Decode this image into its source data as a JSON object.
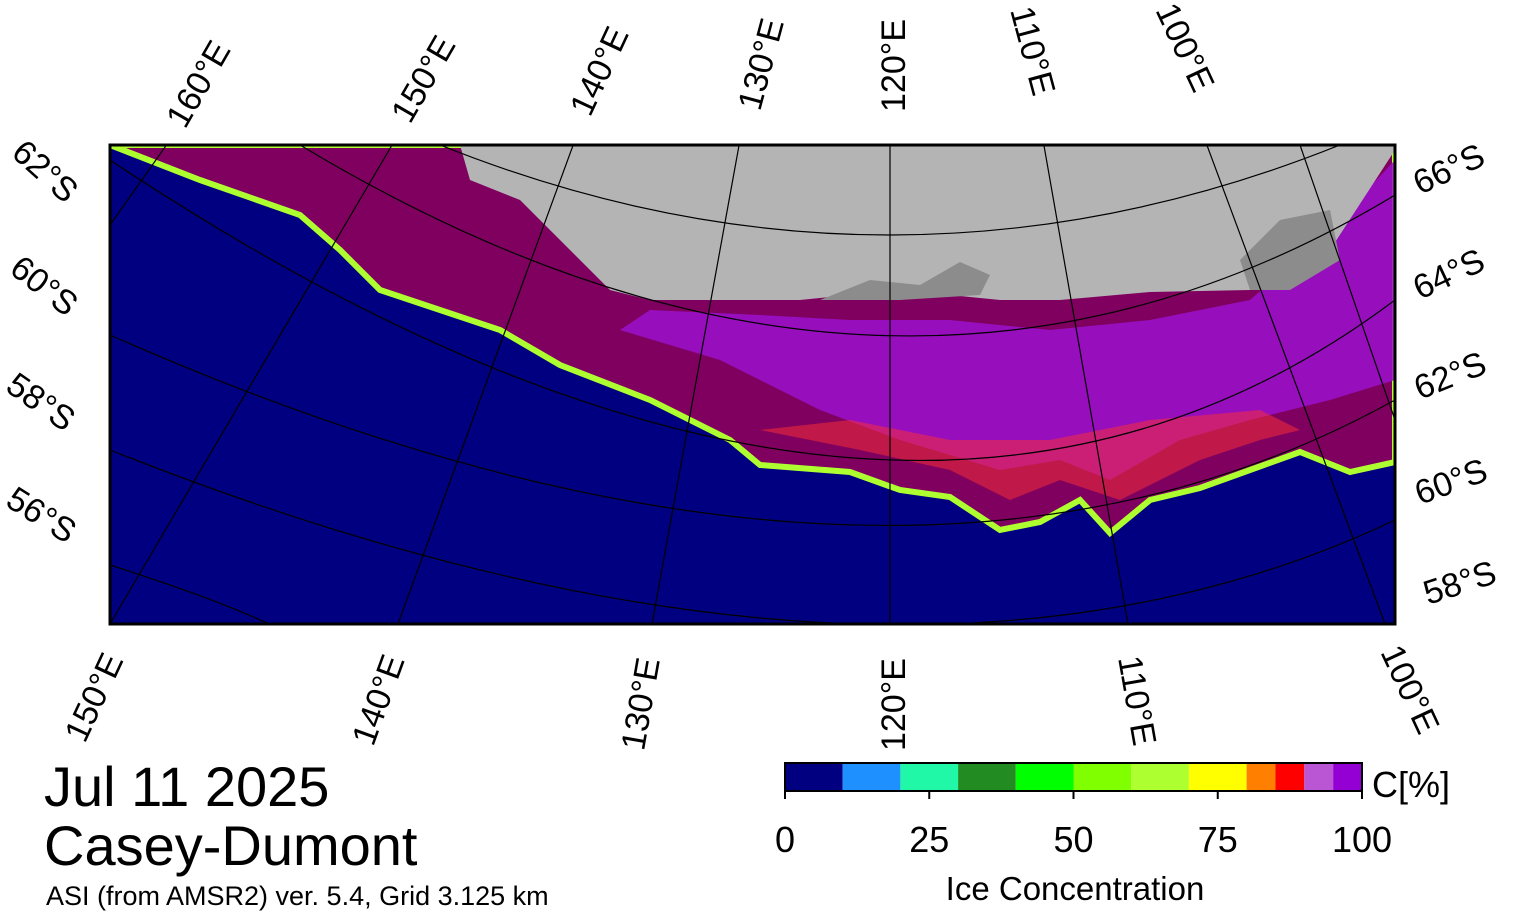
{
  "map": {
    "date": "Jul 11 2025",
    "region": "Casey-Dumont",
    "source": "ASI (from AMSR2) ver. 5.4,  Grid 3.125 km",
    "top_labels": [
      "160°E",
      "150°E",
      "140°E",
      "130°E",
      "120°E",
      "110°E",
      "100°E"
    ],
    "bottom_labels": [
      "150°E",
      "140°E",
      "130°E",
      "120°E",
      "110°E",
      "100°E"
    ],
    "left_labels": [
      "62°S",
      "60°S",
      "58°S",
      "56°S"
    ],
    "right_labels": [
      "66°S",
      "64°S",
      "62°S",
      "60°S",
      "58°S"
    ]
  },
  "colorbar": {
    "title": "Ice Concentration",
    "unit": "C[%]",
    "lim": [
      0,
      100
    ],
    "ticks": [
      0,
      25,
      50,
      75,
      100
    ],
    "bin_edges": [
      0,
      10,
      20,
      30,
      40,
      50,
      60,
      70,
      80,
      85,
      90,
      95,
      100
    ],
    "colors": [
      "#000080",
      "#1e90ff",
      "#20f8a8",
      "#228b22",
      "#00ff00",
      "#7fff00",
      "#adff2f",
      "#ffff00",
      "#ff8000",
      "#ff0000",
      "#ba55d3",
      "#9400d3"
    ]
  }
}
